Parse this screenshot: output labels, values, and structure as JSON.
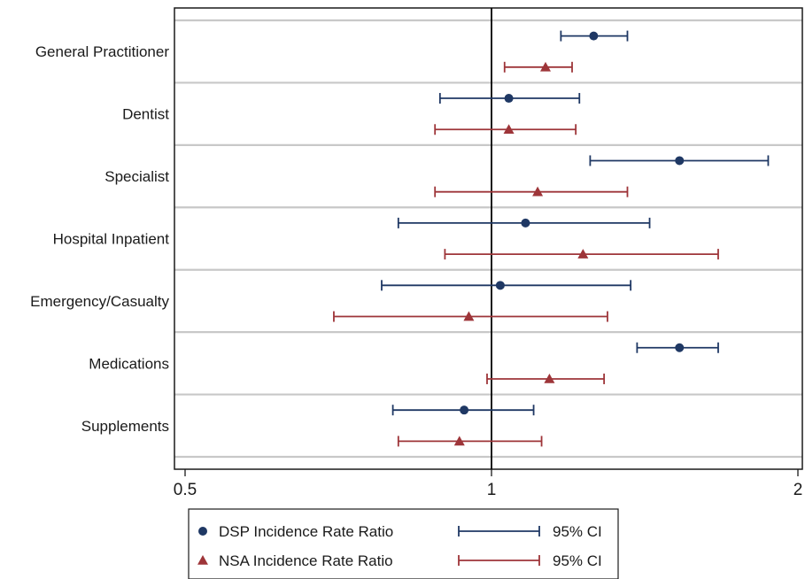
{
  "chart_data": {
    "type": "forest",
    "x_scale": "log",
    "xlim": [
      0.5,
      2
    ],
    "x_ticks": [
      {
        "value": 0.5,
        "label": "0.5"
      },
      {
        "value": 1,
        "label": "1"
      },
      {
        "value": 2,
        "label": "2"
      }
    ],
    "reference_line": 1,
    "grid": true,
    "legend_position": "bottom",
    "categories": [
      "General Practitioner",
      "Dentist",
      "Specialist",
      "Hospital Inpatient",
      "Emergency/Casualty",
      "Medications",
      "Supplements"
    ],
    "series": [
      {
        "name": "DSP Incidence Rate Ratio",
        "ci_label": "95% CI",
        "marker": "circle",
        "color": "#1f3864",
        "points": [
          {
            "est": 1.26,
            "lo": 1.17,
            "hi": 1.36
          },
          {
            "est": 1.04,
            "lo": 0.89,
            "hi": 1.22
          },
          {
            "est": 1.53,
            "lo": 1.25,
            "hi": 1.87
          },
          {
            "est": 1.08,
            "lo": 0.81,
            "hi": 1.43
          },
          {
            "est": 1.02,
            "lo": 0.78,
            "hi": 1.37
          },
          {
            "est": 1.53,
            "lo": 1.39,
            "hi": 1.67
          },
          {
            "est": 0.94,
            "lo": 0.8,
            "hi": 1.1
          }
        ]
      },
      {
        "name": "NSA Incidence Rate Ratio",
        "ci_label": "95% CI",
        "marker": "triangle",
        "color": "#9e3539",
        "points": [
          {
            "est": 1.13,
            "lo": 1.03,
            "hi": 1.2
          },
          {
            "est": 1.04,
            "lo": 0.88,
            "hi": 1.21
          },
          {
            "est": 1.11,
            "lo": 0.88,
            "hi": 1.36
          },
          {
            "est": 1.23,
            "lo": 0.9,
            "hi": 1.67
          },
          {
            "est": 0.95,
            "lo": 0.7,
            "hi": 1.3
          },
          {
            "est": 1.14,
            "lo": 0.99,
            "hi": 1.29
          },
          {
            "est": 0.93,
            "lo": 0.81,
            "hi": 1.12
          }
        ]
      }
    ]
  }
}
